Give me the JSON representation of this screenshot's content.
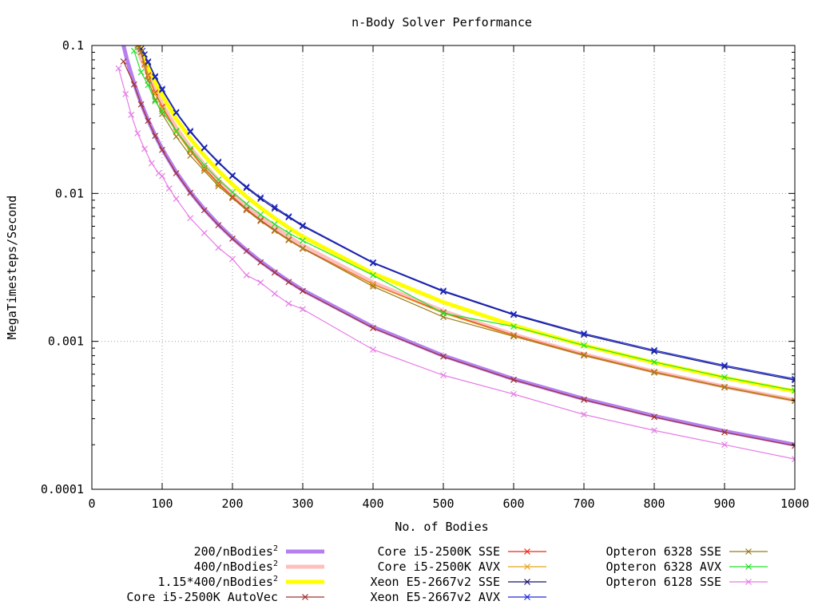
{
  "chart_data": {
    "type": "line",
    "title": "n-Body Solver Performance",
    "xlabel": "No. of Bodies",
    "ylabel": "MegaTimesteps/Second",
    "xlim": [
      0,
      1000
    ],
    "ylim": [
      0.0001,
      0.1
    ],
    "y_scale": "log",
    "grid": true,
    "legend_position": "bottom",
    "x_ticks": [
      "0",
      "100",
      "200",
      "300",
      "400",
      "500",
      "600",
      "700",
      "800",
      "900",
      "1000"
    ],
    "y_ticks": [
      "0.0001",
      "0.001",
      "0.01",
      "0.1"
    ],
    "series": [
      {
        "name": "200/nBodies",
        "superscript": "2",
        "formula_k": 200,
        "color": "#b57ff0",
        "style": "thick",
        "x": [
          40,
          50,
          60,
          70,
          80,
          90,
          100,
          120,
          140,
          160,
          180,
          200,
          220,
          240,
          260,
          280,
          300,
          400,
          500,
          600,
          700,
          800,
          900,
          1000
        ],
        "values": [
          0.125,
          0.08,
          0.0556,
          0.0408,
          0.03125,
          0.0247,
          0.02,
          0.0139,
          0.0102,
          0.00781,
          0.00617,
          0.005,
          0.00413,
          0.00347,
          0.00296,
          0.00255,
          0.00222,
          0.00125,
          0.0008,
          0.000556,
          0.000408,
          0.000313,
          0.000247,
          0.0002
        ]
      },
      {
        "name": "400/nBodies",
        "superscript": "2",
        "formula_k": 400,
        "color": "#ffc0bc",
        "style": "thick",
        "x": [
          60,
          70,
          80,
          90,
          100,
          120,
          140,
          160,
          180,
          200,
          220,
          240,
          260,
          280,
          300,
          400,
          500,
          600,
          700,
          800,
          900,
          1000
        ],
        "values": [
          0.111,
          0.0816,
          0.0625,
          0.0494,
          0.04,
          0.0278,
          0.0204,
          0.0156,
          0.0123,
          0.01,
          0.00826,
          0.00694,
          0.00592,
          0.0051,
          0.00444,
          0.0025,
          0.0016,
          0.00111,
          0.000816,
          0.000625,
          0.000494,
          0.0004
        ]
      },
      {
        "name": "1.15*400/nBodies",
        "superscript": "2",
        "formula_k": 460,
        "color": "#ffff00",
        "style": "thick",
        "x": [
          65,
          70,
          80,
          90,
          100,
          120,
          140,
          160,
          180,
          200,
          220,
          240,
          260,
          280,
          300,
          400,
          500,
          600,
          700,
          800,
          900,
          1000
        ],
        "values": [
          0.109,
          0.0939,
          0.0719,
          0.0568,
          0.046,
          0.0319,
          0.0235,
          0.018,
          0.0142,
          0.0115,
          0.0095,
          0.00799,
          0.00681,
          0.00587,
          0.00511,
          0.00288,
          0.00184,
          0.00128,
          0.000939,
          0.000719,
          0.000568,
          0.00046
        ]
      },
      {
        "name": "Core i5-2500K AutoVec",
        "color": "#a0302a",
        "style": "points",
        "x": [
          45,
          60,
          70,
          80,
          90,
          100,
          120,
          140,
          160,
          180,
          200,
          220,
          240,
          260,
          280,
          300,
          400,
          500,
          600,
          700,
          800,
          900,
          1000
        ],
        "values": [
          0.078,
          0.0545,
          0.04,
          0.031,
          0.0245,
          0.0197,
          0.0137,
          0.0101,
          0.0077,
          0.0061,
          0.00495,
          0.00408,
          0.00342,
          0.00292,
          0.00252,
          0.00219,
          0.00123,
          0.00079,
          0.00055,
          0.000403,
          0.000308,
          0.000243,
          0.000197
        ]
      },
      {
        "name": "Core i5-2500K SSE",
        "color": "#e52a1c",
        "style": "points",
        "x": [
          68,
          75,
          80,
          90,
          100,
          120,
          140,
          160,
          180,
          200,
          220,
          240,
          260,
          280,
          300,
          400,
          500,
          600,
          700,
          800,
          900,
          1000
        ],
        "values": [
          0.098,
          0.075,
          0.063,
          0.048,
          0.0385,
          0.0265,
          0.0195,
          0.0148,
          0.0117,
          0.0095,
          0.00785,
          0.0066,
          0.00565,
          0.00488,
          0.00426,
          0.00243,
          0.00157,
          0.0011,
          0.000812,
          0.000622,
          0.000492,
          0.000399
        ]
      },
      {
        "name": "Core i5-2500K AVX",
        "color": "#e8a418",
        "style": "points",
        "x": [
          66,
          75,
          80,
          90,
          100,
          120,
          140,
          160,
          180,
          200,
          220,
          240,
          260,
          280,
          300,
          400,
          500,
          600,
          700,
          800,
          900,
          1000
        ],
        "values": [
          0.1,
          0.074,
          0.062,
          0.047,
          0.0378,
          0.026,
          0.0192,
          0.0146,
          0.0115,
          0.0093,
          0.00772,
          0.0065,
          0.00557,
          0.00482,
          0.00422,
          0.00242,
          0.00155,
          0.00109,
          0.000807,
          0.000619,
          0.00049,
          0.000398
        ]
      },
      {
        "name": "Xeon E5-2667v2 SSE",
        "color": "#14146e",
        "style": "points",
        "x": [
          70,
          75,
          80,
          90,
          100,
          120,
          140,
          160,
          180,
          200,
          220,
          240,
          260,
          280,
          300,
          400,
          500,
          600,
          700,
          800,
          900,
          1000
        ],
        "values": [
          0.095,
          0.087,
          0.077,
          0.061,
          0.05,
          0.035,
          0.026,
          0.0202,
          0.0161,
          0.0131,
          0.0109,
          0.0092,
          0.0079,
          0.0069,
          0.006,
          0.00338,
          0.00217,
          0.00151,
          0.00111,
          0.000856,
          0.000676,
          0.000547
        ]
      },
      {
        "name": "Xeon E5-2667v2 AVX",
        "color": "#1d2ad6",
        "style": "points",
        "x": [
          72,
          80,
          90,
          100,
          120,
          140,
          160,
          180,
          200,
          220,
          240,
          260,
          280,
          300,
          400,
          500,
          600,
          700,
          800,
          900,
          1000
        ],
        "values": [
          0.092,
          0.078,
          0.062,
          0.051,
          0.0355,
          0.0265,
          0.0205,
          0.0164,
          0.0133,
          0.0111,
          0.0094,
          0.0081,
          0.007,
          0.0061,
          0.00342,
          0.0022,
          0.00153,
          0.00113,
          0.000872,
          0.000689,
          0.000558
        ]
      },
      {
        "name": "Opteron 6328 SSE",
        "color": "#9b7a1e",
        "style": "points",
        "x": [
          65,
          70,
          80,
          90,
          100,
          120,
          140,
          160,
          180,
          200,
          220,
          240,
          260,
          280,
          300,
          400,
          500,
          600,
          700,
          800,
          900,
          1000
        ],
        "values": [
          0.1,
          0.09,
          0.058,
          0.043,
          0.0345,
          0.0242,
          0.018,
          0.0142,
          0.0112,
          0.0093,
          0.0077,
          0.0065,
          0.0056,
          0.00485,
          0.00425,
          0.00235,
          0.00146,
          0.00108,
          0.000802,
          0.000615,
          0.000488,
          0.000395
        ]
      },
      {
        "name": "Opteron 6328 AVX",
        "color": "#22e22a",
        "style": "points",
        "x": [
          60,
          70,
          80,
          90,
          100,
          120,
          140,
          160,
          180,
          200,
          220,
          240,
          260,
          280,
          300,
          400,
          500,
          600,
          700,
          800,
          900,
          1000
        ],
        "values": [
          0.092,
          0.066,
          0.054,
          0.042,
          0.036,
          0.0265,
          0.02,
          0.0155,
          0.0124,
          0.0102,
          0.0085,
          0.0072,
          0.0062,
          0.0054,
          0.0048,
          0.0028,
          0.00155,
          0.00126,
          0.00094,
          0.000725,
          0.000572,
          0.000465
        ]
      },
      {
        "name": "Opteron 6128 SSE",
        "color": "#e67ce6",
        "style": "points",
        "x": [
          38,
          48,
          56,
          65,
          75,
          85,
          95,
          100,
          110,
          120,
          140,
          160,
          180,
          200,
          220,
          240,
          260,
          280,
          300,
          400,
          500,
          600,
          700,
          800,
          900,
          1000
        ],
        "values": [
          0.07,
          0.047,
          0.034,
          0.0255,
          0.02,
          0.016,
          0.0137,
          0.0131,
          0.0108,
          0.0092,
          0.0068,
          0.0054,
          0.0043,
          0.0036,
          0.0028,
          0.0025,
          0.0021,
          0.0018,
          0.00165,
          0.00088,
          0.00059,
          0.00044,
          0.00032,
          0.00025,
          0.0002,
          0.00016
        ]
      }
    ]
  }
}
